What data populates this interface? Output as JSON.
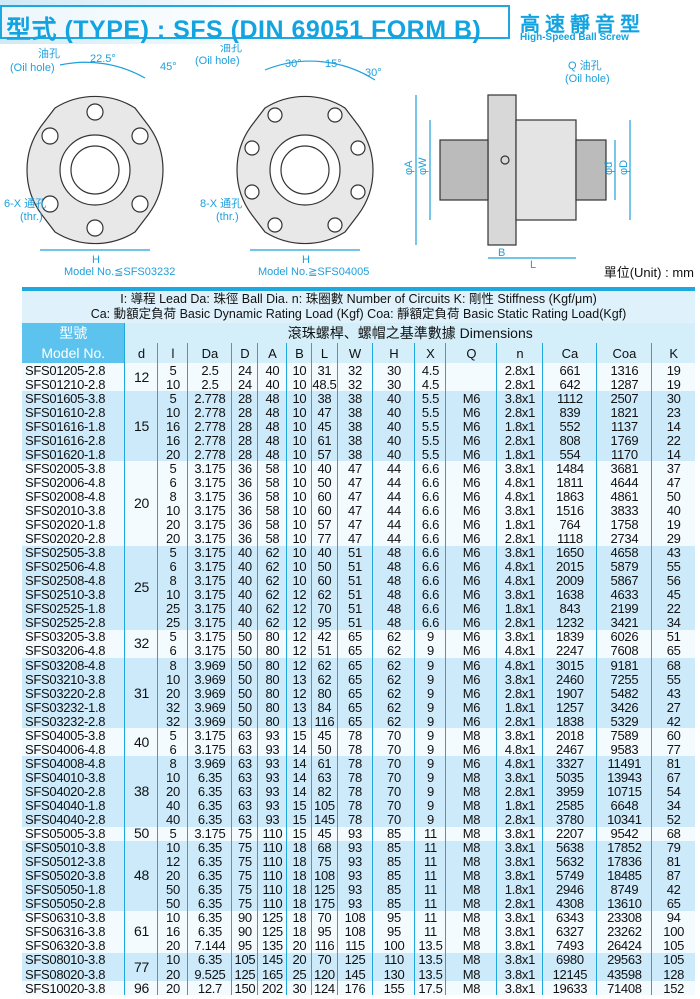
{
  "header": {
    "title": "型式 (TYPE) : SFS (DIN 69051 FORM B)",
    "subtitle_cn": "高速靜音型",
    "subtitle_en": "High-Speed Ball Screw"
  },
  "diagram": {
    "oil_hole_cn": "油孔",
    "oil_hole_en": "(Oil hole)",
    "q_oil_hole_cn": "Q 油孔",
    "angle_22_5": "22.5°",
    "angle_45": "45°",
    "angle_30a": "30°",
    "angle_15": "15°",
    "angle_30b": "30°",
    "thr6_cn": "6-X 通孔",
    "thr8_cn": "8-X 通孔",
    "thr_en": "(thr.)",
    "H": "H",
    "B": "B",
    "L": "L",
    "phiA": "φA",
    "phiW": "φW",
    "phid": "φd",
    "phiD": "φD",
    "model_left": "Model No.≦SFS03232",
    "model_right": "Model No.≧SFS04005"
  },
  "unit": "單位(Unit) : mm",
  "legend": {
    "line1": "I: 導程 Lead   Da: 珠徑 Ball Dia.  n: 珠圈數 Number of Circuits   K: 剛性 Stiffness (Kgf/μm)",
    "line2": "Ca: 動額定負荷 Basic Dynamic Rating Load (Kgf)  Coa: 靜額定負荷 Basic Static Rating Load(Kgf)"
  },
  "table": {
    "model_cn": "型號",
    "model_en": "Model No.",
    "dims_title": "滾珠螺桿、螺帽之基準數據 Dimensions",
    "columns": [
      "d",
      "l",
      "Da",
      "D",
      "A",
      "B",
      "L",
      "W",
      "H",
      "X",
      "Q",
      "n",
      "Ca",
      "Coa",
      "K"
    ],
    "rows": [
      [
        "SFS01205-2.8",
        "12",
        "5",
        "2.5",
        "24",
        "40",
        "10",
        "31",
        "32",
        "30",
        "4.5",
        "",
        "2.8x1",
        "661",
        "1316",
        "19"
      ],
      [
        "SFS01210-2.8",
        "12",
        "10",
        "2.5",
        "24",
        "40",
        "10",
        "48.5",
        "32",
        "30",
        "4.5",
        "",
        "2.8x1",
        "642",
        "1287",
        "19"
      ],
      [
        "SFS01605-3.8",
        "15",
        "5",
        "2.778",
        "28",
        "48",
        "10",
        "38",
        "38",
        "40",
        "5.5",
        "M6",
        "3.8x1",
        "1112",
        "2507",
        "30"
      ],
      [
        "SFS01610-2.8",
        "15",
        "10",
        "2.778",
        "28",
        "48",
        "10",
        "47",
        "38",
        "40",
        "5.5",
        "M6",
        "2.8x1",
        "839",
        "1821",
        "23"
      ],
      [
        "SFS01616-1.8",
        "15",
        "16",
        "2.778",
        "28",
        "48",
        "10",
        "45",
        "38",
        "40",
        "5.5",
        "M6",
        "1.8x1",
        "552",
        "1137",
        "14"
      ],
      [
        "SFS01616-2.8",
        "15",
        "16",
        "2.778",
        "28",
        "48",
        "10",
        "61",
        "38",
        "40",
        "5.5",
        "M6",
        "2.8x1",
        "808",
        "1769",
        "22"
      ],
      [
        "SFS01620-1.8",
        "15",
        "20",
        "2.778",
        "28",
        "48",
        "10",
        "57",
        "38",
        "40",
        "5.5",
        "M6",
        "1.8x1",
        "554",
        "1170",
        "14"
      ],
      [
        "SFS02005-3.8",
        "20",
        "5",
        "3.175",
        "36",
        "58",
        "10",
        "40",
        "47",
        "44",
        "6.6",
        "M6",
        "3.8x1",
        "1484",
        "3681",
        "37"
      ],
      [
        "SFS02006-4.8",
        "20",
        "6",
        "3.175",
        "36",
        "58",
        "10",
        "50",
        "47",
        "44",
        "6.6",
        "M6",
        "4.8x1",
        "1811",
        "4644",
        "47"
      ],
      [
        "SFS02008-4.8",
        "20",
        "8",
        "3.175",
        "36",
        "58",
        "10",
        "60",
        "47",
        "44",
        "6.6",
        "M6",
        "4.8x1",
        "1863",
        "4861",
        "50"
      ],
      [
        "SFS02010-3.8",
        "20",
        "10",
        "3.175",
        "36",
        "58",
        "10",
        "60",
        "47",
        "44",
        "6.6",
        "M6",
        "3.8x1",
        "1516",
        "3833",
        "40"
      ],
      [
        "SFS02020-1.8",
        "20",
        "20",
        "3.175",
        "36",
        "58",
        "10",
        "57",
        "47",
        "44",
        "6.6",
        "M6",
        "1.8x1",
        "764",
        "1758",
        "19"
      ],
      [
        "SFS02020-2.8",
        "20",
        "20",
        "3.175",
        "36",
        "58",
        "10",
        "77",
        "47",
        "44",
        "6.6",
        "M6",
        "2.8x1",
        "1118",
        "2734",
        "29"
      ],
      [
        "SFS02505-3.8",
        "25",
        "5",
        "3.175",
        "40",
        "62",
        "10",
        "40",
        "51",
        "48",
        "6.6",
        "M6",
        "3.8x1",
        "1650",
        "4658",
        "43"
      ],
      [
        "SFS02506-4.8",
        "25",
        "6",
        "3.175",
        "40",
        "62",
        "10",
        "50",
        "51",
        "48",
        "6.6",
        "M6",
        "4.8x1",
        "2015",
        "5879",
        "55"
      ],
      [
        "SFS02508-4.8",
        "25",
        "8",
        "3.175",
        "40",
        "62",
        "10",
        "60",
        "51",
        "48",
        "6.6",
        "M6",
        "4.8x1",
        "2009",
        "5867",
        "56"
      ],
      [
        "SFS02510-3.8",
        "25",
        "10",
        "3.175",
        "40",
        "62",
        "12",
        "62",
        "51",
        "48",
        "6.6",
        "M6",
        "3.8x1",
        "1638",
        "4633",
        "45"
      ],
      [
        "SFS02525-1.8",
        "25",
        "25",
        "3.175",
        "40",
        "62",
        "12",
        "70",
        "51",
        "48",
        "6.6",
        "M6",
        "1.8x1",
        "843",
        "2199",
        "22"
      ],
      [
        "SFS02525-2.8",
        "25",
        "25",
        "3.175",
        "40",
        "62",
        "12",
        "95",
        "51",
        "48",
        "6.6",
        "M6",
        "2.8x1",
        "1232",
        "3421",
        "34"
      ],
      [
        "SFS03205-3.8",
        "32",
        "5",
        "3.175",
        "50",
        "80",
        "12",
        "42",
        "65",
        "62",
        "9",
        "M6",
        "3.8x1",
        "1839",
        "6026",
        "51"
      ],
      [
        "SFS03206-4.8",
        "32",
        "6",
        "3.175",
        "50",
        "80",
        "12",
        "51",
        "65",
        "62",
        "9",
        "M6",
        "4.8x1",
        "2247",
        "7608",
        "65"
      ],
      [
        "SFS03208-4.8",
        "31",
        "8",
        "3.969",
        "50",
        "80",
        "12",
        "62",
        "65",
        "62",
        "9",
        "M6",
        "4.8x1",
        "3015",
        "9181",
        "68"
      ],
      [
        "SFS03210-3.8",
        "31",
        "10",
        "3.969",
        "50",
        "80",
        "13",
        "62",
        "65",
        "62",
        "9",
        "M6",
        "3.8x1",
        "2460",
        "7255",
        "55"
      ],
      [
        "SFS03220-2.8",
        "31",
        "20",
        "3.969",
        "50",
        "80",
        "12",
        "80",
        "65",
        "62",
        "9",
        "M6",
        "2.8x1",
        "1907",
        "5482",
        "43"
      ],
      [
        "SFS03232-1.8",
        "31",
        "32",
        "3.969",
        "50",
        "80",
        "13",
        "84",
        "65",
        "62",
        "9",
        "M6",
        "1.8x1",
        "1257",
        "3426",
        "27"
      ],
      [
        "SFS03232-2.8",
        "31",
        "32",
        "3.969",
        "50",
        "80",
        "13",
        "116",
        "65",
        "62",
        "9",
        "M6",
        "2.8x1",
        "1838",
        "5329",
        "42"
      ],
      [
        "SFS04005-3.8",
        "40",
        "5",
        "3.175",
        "63",
        "93",
        "15",
        "45",
        "78",
        "70",
        "9",
        "M8",
        "3.8x1",
        "2018",
        "7589",
        "60"
      ],
      [
        "SFS04006-4.8",
        "40",
        "6",
        "3.175",
        "63",
        "93",
        "14",
        "50",
        "78",
        "70",
        "9",
        "M6",
        "4.8x1",
        "2467",
        "9583",
        "77"
      ],
      [
        "SFS04008-4.8",
        "38",
        "8",
        "3.969",
        "63",
        "93",
        "14",
        "61",
        "78",
        "70",
        "9",
        "M6",
        "4.8x1",
        "3327",
        "11491",
        "81"
      ],
      [
        "SFS04010-3.8",
        "38",
        "10",
        "6.35",
        "63",
        "93",
        "14",
        "63",
        "78",
        "70",
        "9",
        "M8",
        "3.8x1",
        "5035",
        "13943",
        "67"
      ],
      [
        "SFS04020-2.8",
        "38",
        "20",
        "6.35",
        "63",
        "93",
        "14",
        "82",
        "78",
        "70",
        "9",
        "M8",
        "2.8x1",
        "3959",
        "10715",
        "54"
      ],
      [
        "SFS04040-1.8",
        "38",
        "40",
        "6.35",
        "63",
        "93",
        "15",
        "105",
        "78",
        "70",
        "9",
        "M8",
        "1.8x1",
        "2585",
        "6648",
        "34"
      ],
      [
        "SFS04040-2.8",
        "38",
        "40",
        "6.35",
        "63",
        "93",
        "15",
        "145",
        "78",
        "70",
        "9",
        "M8",
        "2.8x1",
        "3780",
        "10341",
        "52"
      ],
      [
        "SFS05005-3.8",
        "50",
        "5",
        "3.175",
        "75",
        "110",
        "15",
        "45",
        "93",
        "85",
        "11",
        "M8",
        "3.8x1",
        "2207",
        "9542",
        "68"
      ],
      [
        "SFS05010-3.8",
        "48",
        "10",
        "6.35",
        "75",
        "110",
        "18",
        "68",
        "93",
        "85",
        "11",
        "M8",
        "3.8x1",
        "5638",
        "17852",
        "79"
      ],
      [
        "SFS05012-3.8",
        "48",
        "12",
        "6.35",
        "75",
        "110",
        "18",
        "75",
        "93",
        "85",
        "11",
        "M8",
        "3.8x1",
        "5632",
        "17836",
        "81"
      ],
      [
        "SFS05020-3.8",
        "48",
        "20",
        "6.35",
        "75",
        "110",
        "18",
        "108",
        "93",
        "85",
        "11",
        "M8",
        "3.8x1",
        "5749",
        "18485",
        "87"
      ],
      [
        "SFS05050-1.8",
        "48",
        "50",
        "6.35",
        "75",
        "110",
        "18",
        "125",
        "93",
        "85",
        "11",
        "M8",
        "1.8x1",
        "2946",
        "8749",
        "42"
      ],
      [
        "SFS05050-2.8",
        "48",
        "50",
        "6.35",
        "75",
        "110",
        "18",
        "175",
        "93",
        "85",
        "11",
        "M8",
        "2.8x1",
        "4308",
        "13610",
        "65"
      ],
      [
        "SFS06310-3.8",
        "61",
        "10",
        "6.35",
        "90",
        "125",
        "18",
        "70",
        "108",
        "95",
        "11",
        "M8",
        "3.8x1",
        "6343",
        "23308",
        "94"
      ],
      [
        "SFS06316-3.8",
        "61",
        "16",
        "6.35",
        "90",
        "125",
        "18",
        "95",
        "108",
        "95",
        "11",
        "M8",
        "3.8x1",
        "6327",
        "23262",
        "100"
      ],
      [
        "SFS06320-3.8",
        "61",
        "20",
        "7.144",
        "95",
        "135",
        "20",
        "116",
        "115",
        "100",
        "13.5",
        "M8",
        "3.8x1",
        "7493",
        "26424",
        "105"
      ],
      [
        "SFS08010-3.8",
        "77",
        "10",
        "6.35",
        "105",
        "145",
        "20",
        "70",
        "125",
        "110",
        "13.5",
        "M8",
        "3.8x1",
        "6980",
        "29563",
        "105"
      ],
      [
        "SFS08020-3.8",
        "77",
        "20",
        "9.525",
        "125",
        "165",
        "25",
        "120",
        "145",
        "130",
        "13.5",
        "M8",
        "3.8x1",
        "12145",
        "43598",
        "128"
      ],
      [
        "SFS10020-3.8",
        "96",
        "20",
        "12.7",
        "150",
        "202",
        "30",
        "124",
        "176",
        "155",
        "17.5",
        "M8",
        "3.8x1",
        "19633",
        "71408",
        "152"
      ]
    ]
  }
}
